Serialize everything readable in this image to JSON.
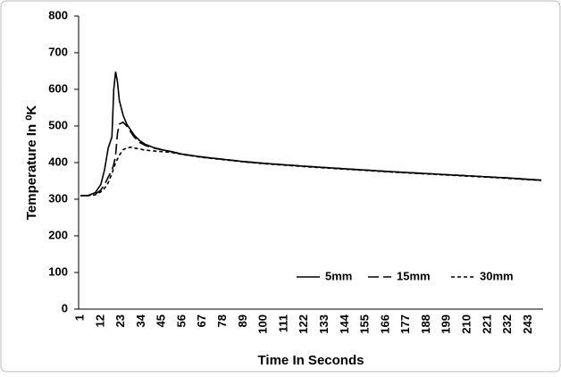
{
  "chart_data": {
    "type": "line",
    "x_label": "Time In Seconds",
    "y_label": "Temperature In ⁰K",
    "x": [
      1,
      5,
      9,
      12,
      14,
      16,
      18,
      19,
      20,
      21,
      22,
      24,
      26,
      28,
      30,
      33,
      36,
      40,
      45,
      50,
      56,
      67,
      78,
      89,
      100,
      122,
      144,
      166,
      188,
      210,
      232,
      250
    ],
    "series": [
      {
        "name": "5mm",
        "color": "#000000",
        "dash": "solid",
        "values": [
          310,
          310,
          318,
          340,
          380,
          440,
          470,
          600,
          648,
          620,
          570,
          530,
          505,
          490,
          475,
          460,
          450,
          442,
          435,
          430,
          423,
          415,
          409,
          403,
          398,
          390,
          383,
          376,
          370,
          364,
          358,
          352
        ]
      },
      {
        "name": "15mm",
        "color": "#000000",
        "dash": "long",
        "values": [
          310,
          310,
          314,
          325,
          340,
          360,
          380,
          395,
          420,
          480,
          505,
          510,
          500,
          485,
          470,
          455,
          447,
          440,
          435,
          430,
          423,
          415,
          409,
          403,
          398,
          390,
          383,
          376,
          370,
          364,
          358,
          352
        ]
      },
      {
        "name": "30mm",
        "color": "#000000",
        "dash": "short",
        "values": [
          310,
          310,
          312,
          320,
          330,
          345,
          370,
          385,
          400,
          410,
          420,
          435,
          440,
          442,
          440,
          437,
          434,
          432,
          430,
          428,
          422,
          414,
          408,
          402,
          397,
          389,
          382,
          375,
          369,
          363,
          357,
          351
        ]
      }
    ],
    "xlim": [
      0,
      251
    ],
    "xticks": [
      1,
      12,
      23,
      34,
      45,
      56,
      67,
      78,
      89,
      100,
      111,
      122,
      133,
      144,
      155,
      166,
      177,
      188,
      199,
      210,
      221,
      232,
      243
    ],
    "ylim": [
      0,
      800
    ],
    "yticks": [
      0,
      100,
      200,
      300,
      400,
      500,
      600,
      700,
      800
    ],
    "grid": false,
    "legend": "lower-right"
  }
}
